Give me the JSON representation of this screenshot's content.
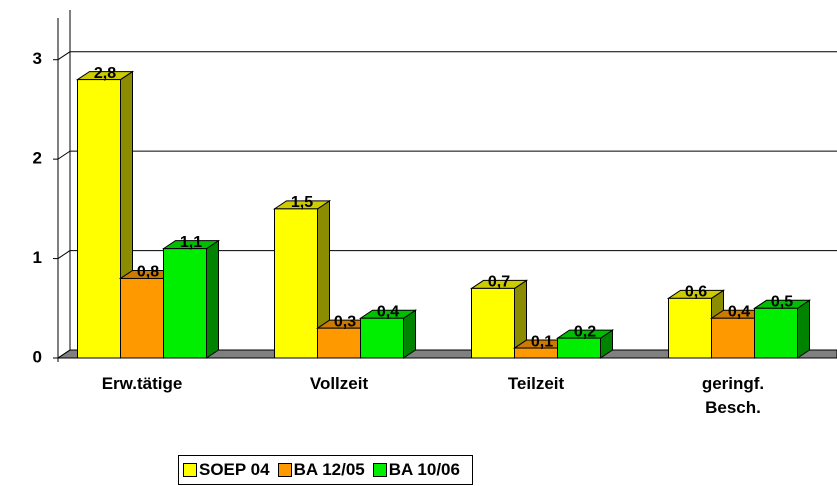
{
  "chart_data": {
    "type": "bar",
    "categories": [
      "Erw.tätige",
      "Vollzeit",
      "Teilzeit",
      "geringf. Besch."
    ],
    "series": [
      {
        "name": "SOEP 04",
        "color": "#ffff00",
        "values": [
          2.8,
          1.5,
          0.7,
          0.6
        ],
        "value_labels": [
          "2,8",
          "1,5",
          "0,7",
          "0,6"
        ]
      },
      {
        "name": "BA 12/05",
        "color": "#ff9900",
        "values": [
          0.8,
          0.3,
          0.1,
          0.4
        ],
        "value_labels": [
          "0,8",
          "0,3",
          "0,1",
          "0,4"
        ]
      },
      {
        "name": "BA 10/06",
        "color": "#00ee00",
        "values": [
          1.1,
          0.4,
          0.2,
          0.5
        ],
        "value_labels": [
          "1,1",
          "0,4",
          "0,2",
          "0,5"
        ]
      }
    ],
    "ylim": [
      0,
      3.5
    ],
    "yticks": [
      0,
      1,
      2,
      3
    ],
    "grid": true,
    "legend": "bottom"
  }
}
